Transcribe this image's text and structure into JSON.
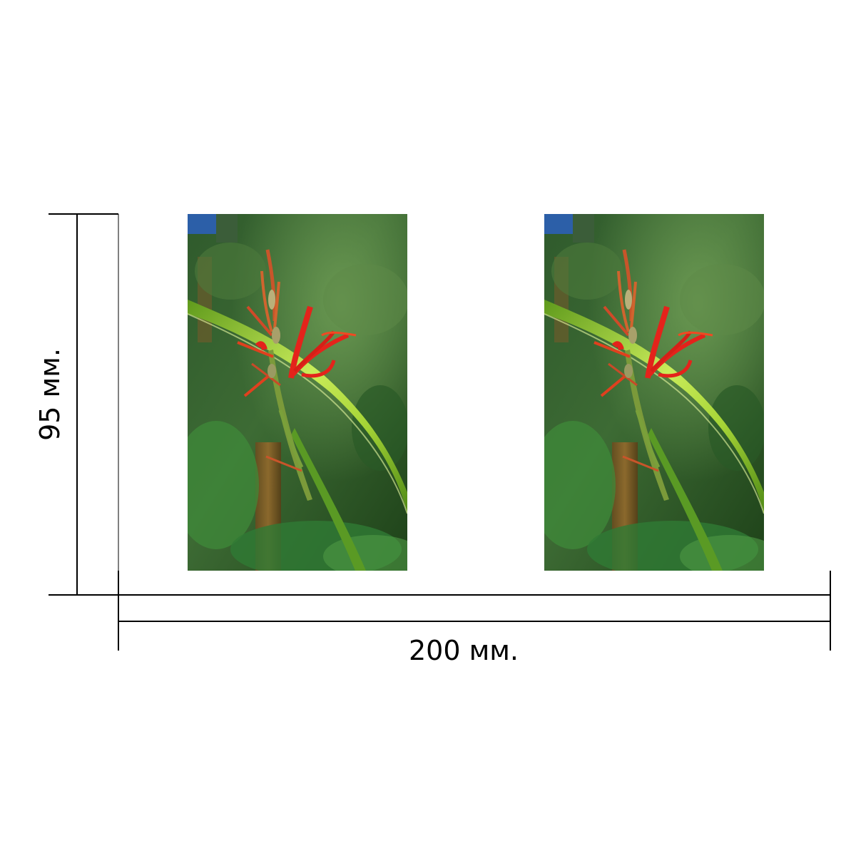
{
  "dimensions": {
    "width_label": "200 мм.",
    "height_label": "95 мм."
  },
  "panels": [
    {
      "subject": "red-flower-with-green-leaf-photo"
    },
    {
      "subject": "red-flower-with-green-leaf-photo"
    }
  ],
  "colors": {
    "line": "#000000",
    "leaf": "#9bcf2a",
    "petal": "#e4231b",
    "foliage_dark": "#1f4a1c"
  }
}
